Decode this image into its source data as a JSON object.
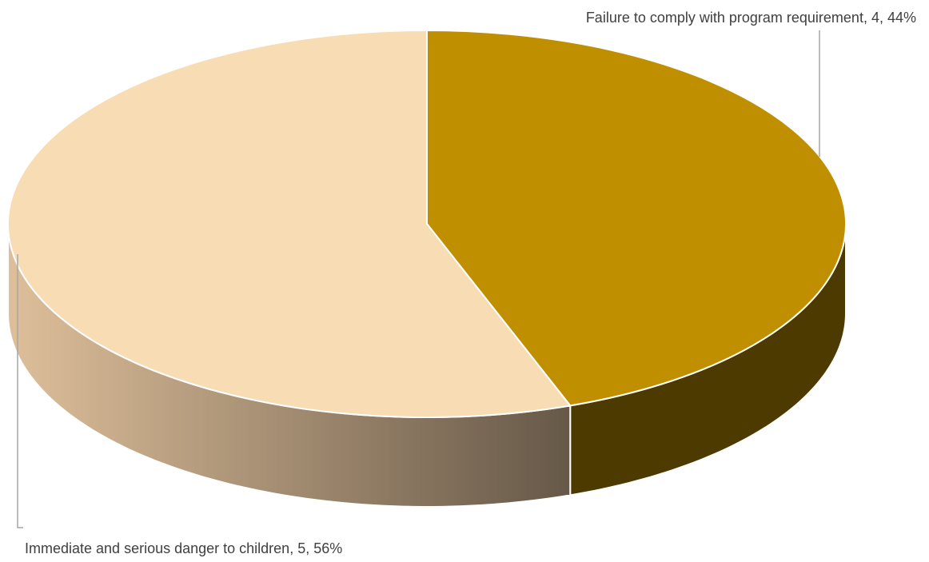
{
  "chart_data": {
    "type": "pie",
    "style": "3d",
    "slices": [
      {
        "category": "Failure to comply with program requirement",
        "value": 4,
        "percent": "44%",
        "label": "Failure to comply with program requirement, 4, 44%",
        "color": "#BF8F00",
        "side_color": "#4D3A00"
      },
      {
        "category": "Immediate and serious danger to children",
        "value": 5,
        "percent": "56%",
        "label": "Immediate and serious danger to children, 5, 56%",
        "color": "#F8DCB4",
        "side_color_light": "#DEBF9A",
        "side_color_dark": "#665848"
      }
    ],
    "start_angle": "12 o'clock",
    "direction": "clockwise",
    "leader_color": "#A6A6A6",
    "label_color": "#404040"
  }
}
